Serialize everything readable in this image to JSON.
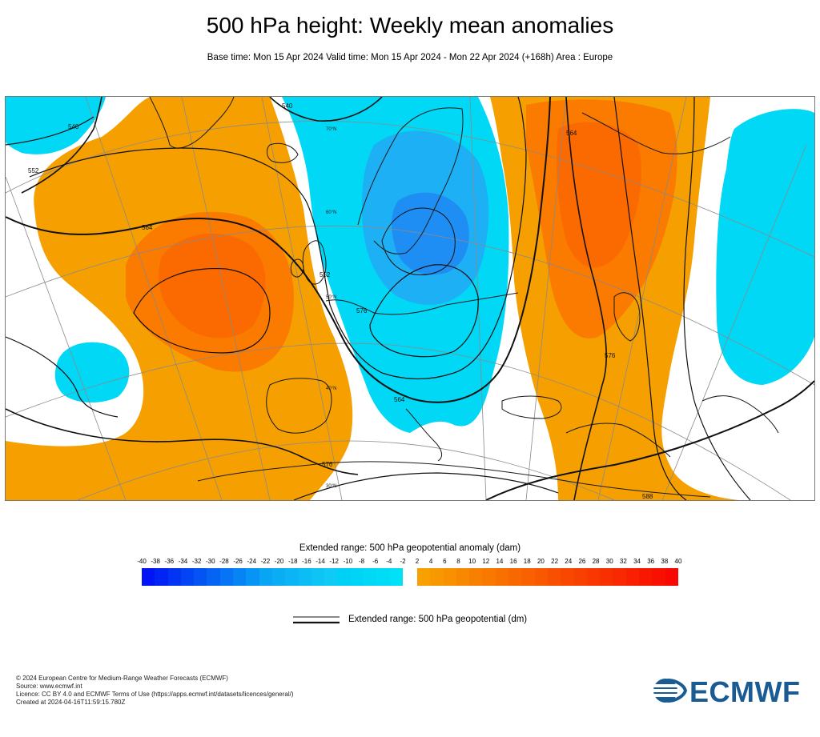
{
  "title": "500 hPa height: Weekly mean anomalies",
  "subtitle": "Base time: Mon 15 Apr 2024 Valid time: Mon 15 Apr 2024 - Mon 22 Apr 2024 (+168h) Area : Europe",
  "map": {
    "contour_labels": [
      "540",
      "540",
      "552",
      "564",
      "552",
      "564",
      "576",
      "564",
      "576",
      "576",
      "588"
    ],
    "latitude_labels": [
      "70°N",
      "60°N",
      "50°N",
      "40°N",
      "30°N"
    ],
    "colors": {
      "ocean_neutral": "#ffffff",
      "positive_anomaly": "#f5a000",
      "strong_positive_anomaly": "#fb6a00",
      "negative_anomaly": "#00d8f6",
      "strong_negative_anomaly": "#1e9ef4",
      "contour": "#111111",
      "coastline": "#1a1a1a",
      "graticule": "#8a8a8a"
    }
  },
  "legend": {
    "title": "Extended range: 500 hPa geopotential anomaly (dam)",
    "negative_ticks": [
      "-40",
      "-38",
      "-36",
      "-34",
      "-32",
      "-30",
      "-28",
      "-26",
      "-24",
      "-22",
      "-20",
      "-18",
      "-16",
      "-14",
      "-12",
      "-10",
      "-8",
      "-6",
      "-4",
      "-2"
    ],
    "positive_ticks": [
      "2",
      "4",
      "6",
      "8",
      "10",
      "12",
      "14",
      "16",
      "18",
      "20",
      "22",
      "24",
      "26",
      "28",
      "30",
      "32",
      "34",
      "36",
      "38",
      "40"
    ],
    "negative_colors": [
      "#0014f5",
      "#0124f4",
      "#0234f4",
      "#0344f4",
      "#0454f4",
      "#0564f4",
      "#0674f4",
      "#0784f4",
      "#0894f4",
      "#09a4f4",
      "#0aacf4",
      "#0bb4f4",
      "#0cbcf4",
      "#0dc4f4",
      "#0ecaf4",
      "#00d0f6",
      "#00d4f6",
      "#00d8f6",
      "#00dcf6",
      "#00e0f6"
    ],
    "positive_colors": [
      "#f8a000",
      "#f89800",
      "#f89000",
      "#f88800",
      "#f88000",
      "#f87800",
      "#f87000",
      "#f86800",
      "#f86000",
      "#f85800",
      "#f85000",
      "#f84800",
      "#f84000",
      "#f83800",
      "#f83000",
      "#f82800",
      "#f82000",
      "#f81800",
      "#f81000",
      "#f80800"
    ],
    "line_label": "Extended range: 500 hPa geopotential (dm)"
  },
  "footer": {
    "line1": "© 2024 European Centre for Medium-Range Weather Forecasts (ECMWF)",
    "line2": "Source: www.ecmwf.int",
    "line3": "Licence: CC BY 4.0 and ECMWF Terms of Use (https://apps.ecmwf.int/datasets/licences/general/)",
    "line4": "Created at 2024-04-16T11:59:15.780Z"
  },
  "logo": {
    "text": "ECMWF",
    "color": "#1a5b93"
  }
}
